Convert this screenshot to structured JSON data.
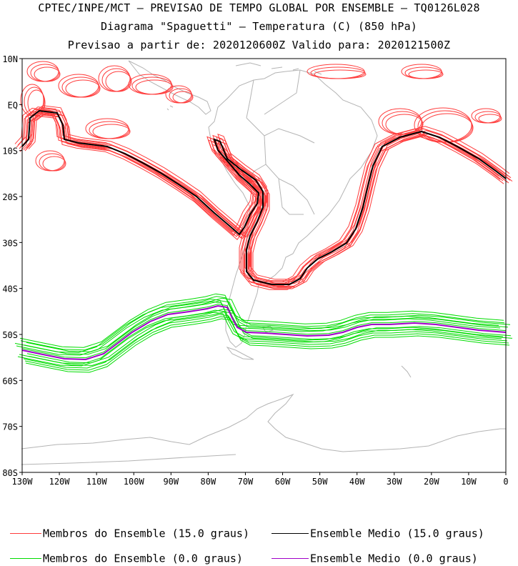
{
  "header": {
    "line1": "CPTEC/INPE/MCT — PREVISAO DE TEMPO GLOBAL POR ENSEMBLE — TQ0126L028",
    "line2": "Diagrama \"Spaguetti\" — Temperatura (C) (850 hPa)",
    "line3": "Previsao a partir de: 2020120600Z  Valido para: 2020121500Z"
  },
  "map": {
    "lat_labels": [
      "10N",
      "EQ",
      "10S",
      "20S",
      "30S",
      "40S",
      "50S",
      "60S",
      "70S",
      "80S"
    ],
    "lon_labels": [
      "130W",
      "120W",
      "110W",
      "100W",
      "90W",
      "80W",
      "70W",
      "60W",
      "50W",
      "40W",
      "30W",
      "20W",
      "10W",
      "0"
    ],
    "lon_range": [
      -130,
      0
    ],
    "lat_range": [
      -80,
      10
    ],
    "land_color": "#b4b4b4",
    "colors": {
      "warm_members": "#ff3c3c",
      "warm_mean": "#000000",
      "cold_members": "#00dc00",
      "cold_mean": "#a000c8"
    }
  },
  "legend": {
    "warm_members_label": "Membros do Ensemble (15.0 graus)",
    "warm_mean_label": "Ensemble Medio (15.0 graus)",
    "cold_members_label": "Membros do Ensemble (0.0 graus)",
    "cold_mean_label": "Ensemble Medio (0.0 graus)"
  }
}
